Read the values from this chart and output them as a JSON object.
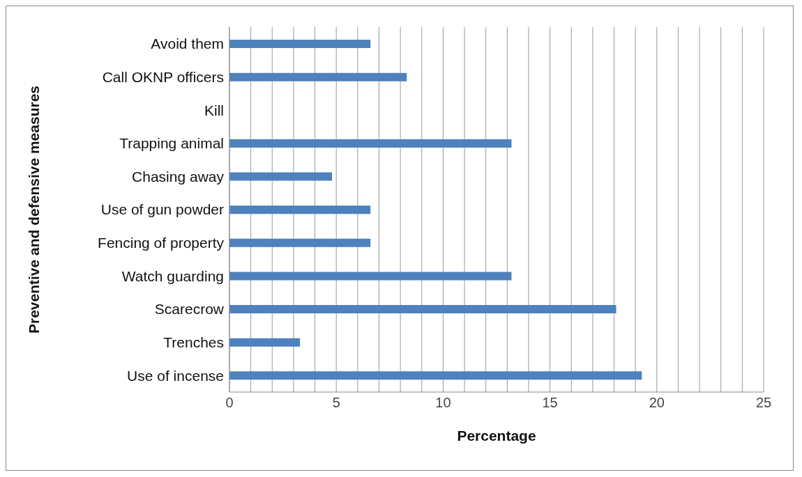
{
  "chart_data": {
    "type": "bar",
    "orientation": "horizontal",
    "xlabel": "Percentage",
    "ylabel": "Preventive and defensive measures",
    "categories": [
      "Avoid them",
      "Call OKNP officers",
      "Kill",
      "Trapping animal",
      "Chasing away",
      "Use of gun powder",
      "Fencing of property",
      "Watch guarding",
      "Scarecrow",
      "Trenches",
      "Use of incense"
    ],
    "values": [
      6.6,
      8.3,
      0,
      13.2,
      4.8,
      6.6,
      6.6,
      13.2,
      18.1,
      3.3,
      19.3
    ],
    "color": "#4f81bd",
    "xlim": [
      0,
      25
    ],
    "xticks": [
      0,
      {
        "value": 1,
        "label": null
      },
      {
        "value": 2,
        "label": null
      },
      {
        "value": 3,
        "label": null
      },
      {
        "value": 4,
        "label": null
      },
      5,
      {
        "value": 6,
        "label": null
      },
      {
        "value": 7,
        "label": null
      },
      {
        "value": 8,
        "label": null
      },
      {
        "value": 9,
        "label": null
      },
      10,
      {
        "value": 11,
        "label": null
      },
      {
        "value": 12,
        "label": null
      },
      {
        "value": 13,
        "label": null
      },
      {
        "value": 14,
        "label": null
      },
      15,
      {
        "value": 16,
        "label": null
      },
      {
        "value": 17,
        "label": null
      },
      {
        "value": 18,
        "label": null
      },
      {
        "value": 19,
        "label": null
      },
      20,
      {
        "value": 21,
        "label": null
      },
      {
        "value": 22,
        "label": null
      },
      {
        "value": 23,
        "label": null
      },
      {
        "value": 24,
        "label": null
      },
      25
    ],
    "grid": "x",
    "legend": false
  }
}
